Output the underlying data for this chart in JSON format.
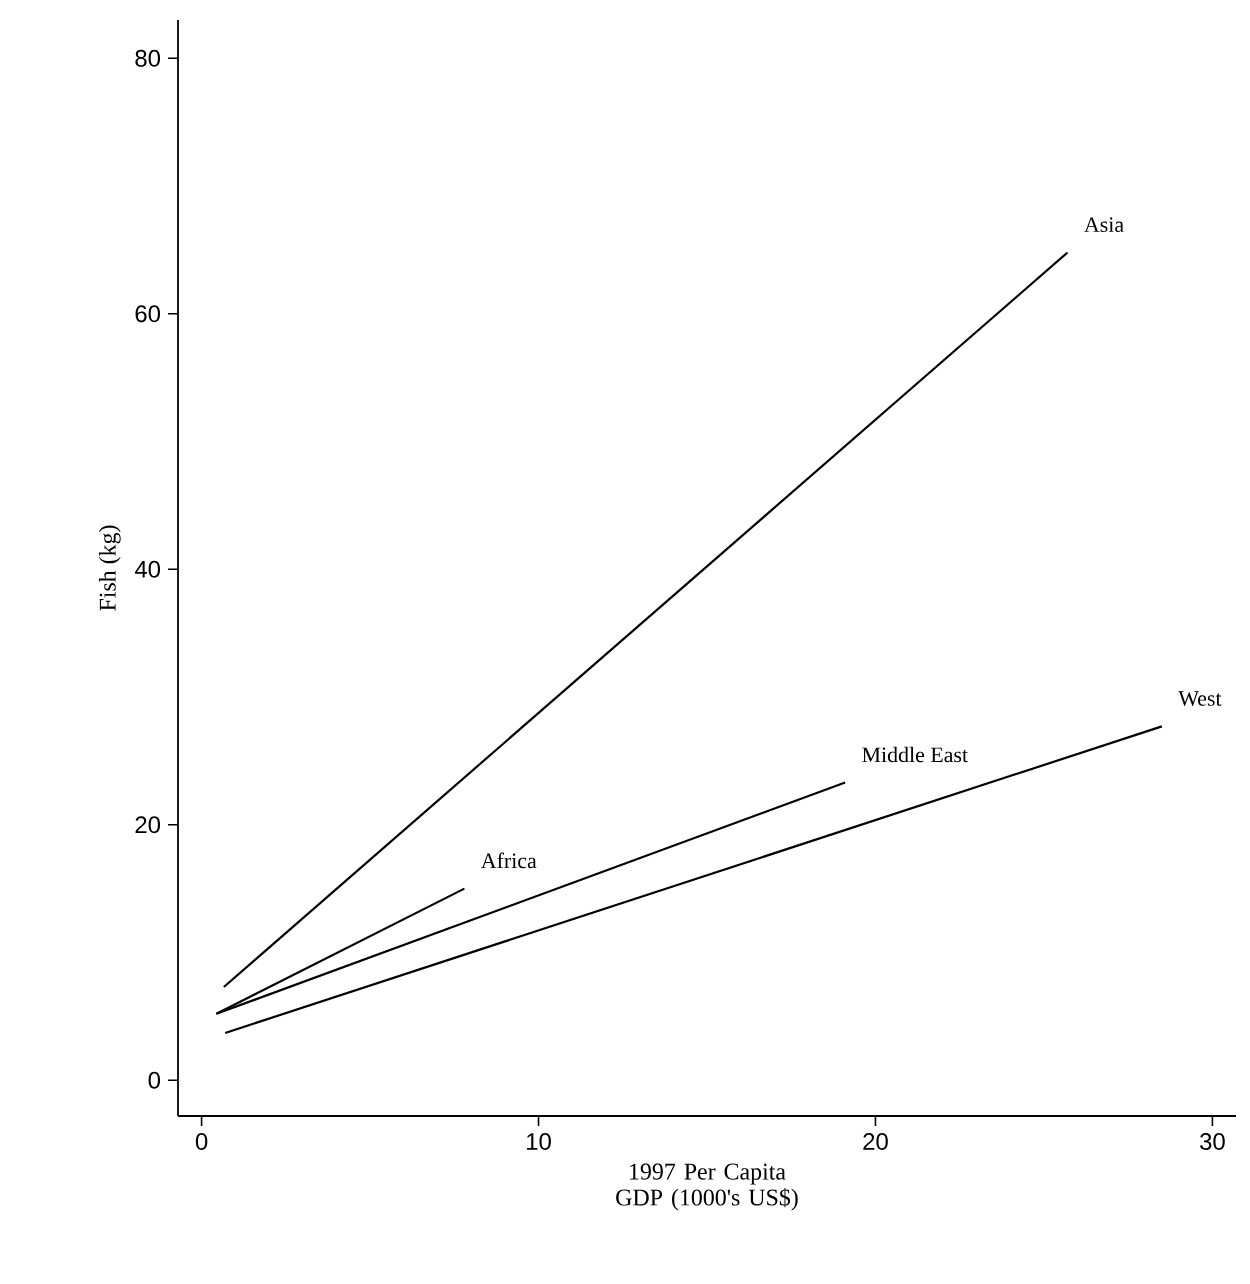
{
  "chart_data": {
    "type": "line",
    "xlabel": "1997 Per Capita\nGDP (1000's US$)",
    "ylabel": "Fish (kg)",
    "xlim": [
      -0.7,
      30.7
    ],
    "ylim": [
      -2.8,
      83
    ],
    "xticks": [
      0,
      10,
      20,
      30
    ],
    "yticks": [
      0,
      20,
      40,
      60,
      80
    ],
    "grid": false,
    "marker": "none",
    "line_style": "solid",
    "series": [
      {
        "name": "Asia",
        "color": "#000000",
        "x": [
          0.66,
          25.7
        ],
        "values": [
          7.3,
          64.8
        ]
      },
      {
        "name": "Africa",
        "color": "#000000",
        "x": [
          0.44,
          7.8
        ],
        "values": [
          5.2,
          15.0
        ]
      },
      {
        "name": "Middle East",
        "color": "#000000",
        "x": [
          0.44,
          19.1
        ],
        "values": [
          5.2,
          23.3
        ]
      },
      {
        "name": "West",
        "color": "#000000",
        "x": [
          0.7,
          28.5
        ],
        "values": [
          3.7,
          27.7
        ]
      }
    ]
  }
}
